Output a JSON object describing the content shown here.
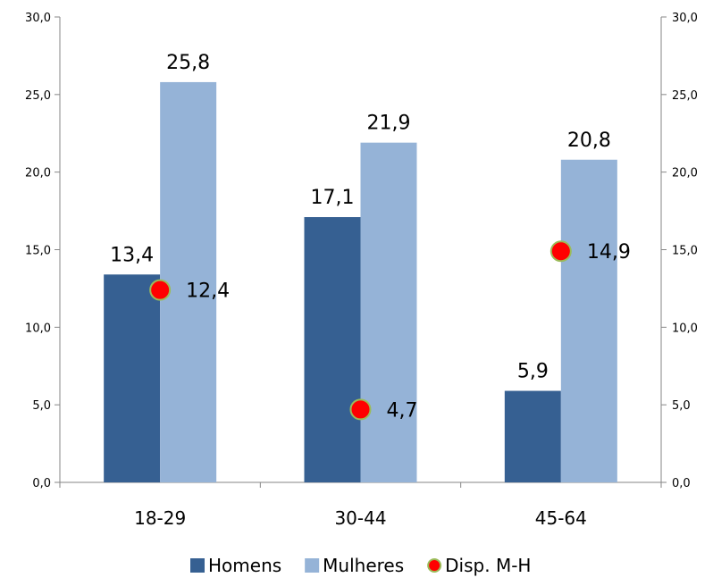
{
  "chart_data": {
    "type": "bar",
    "categories": [
      "18-29",
      "30-44",
      "45-64"
    ],
    "series": [
      {
        "name": "Homens",
        "kind": "bar",
        "color": "#366092",
        "values": [
          13.4,
          17.1,
          5.9
        ],
        "labels": [
          "13,4",
          "17,1",
          "5,9"
        ]
      },
      {
        "name": "Mulheres",
        "kind": "bar",
        "color": "#95B3D7",
        "values": [
          25.8,
          21.9,
          20.8
        ],
        "labels": [
          "25,8",
          "21,9",
          "20,8"
        ]
      },
      {
        "name": "Disp. M-H",
        "kind": "point",
        "color": "#FF0000",
        "edge_color": "#9BBB59",
        "values": [
          12.4,
          4.7,
          14.9
        ],
        "labels": [
          "12,4",
          "4,7",
          "14,9"
        ]
      }
    ],
    "ylim": [
      0,
      30
    ],
    "y2lim": [
      0,
      30
    ],
    "yticks": [
      "0,0",
      "5,0",
      "10,0",
      "15,0",
      "20,0",
      "25,0",
      "30,0"
    ],
    "grid": false,
    "legend_position": "bottom"
  }
}
